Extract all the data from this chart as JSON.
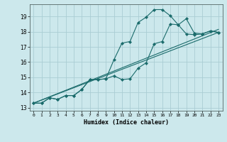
{
  "xlabel": "Humidex (Indice chaleur)",
  "bg_color": "#cce8ec",
  "grid_color": "#aacdd4",
  "line_color": "#1a6b6b",
  "xlim": [
    -0.5,
    23.5
  ],
  "ylim": [
    12.8,
    19.8
  ],
  "xticks": [
    0,
    1,
    2,
    3,
    4,
    5,
    6,
    7,
    8,
    9,
    10,
    11,
    12,
    13,
    14,
    15,
    16,
    17,
    18,
    19,
    20,
    21,
    22,
    23
  ],
  "yticks": [
    13,
    14,
    15,
    16,
    17,
    18,
    19
  ],
  "line1_x": [
    0,
    1,
    2,
    3,
    4,
    5,
    6,
    7,
    8,
    9,
    10,
    11,
    12,
    13,
    14,
    15,
    16,
    17,
    18,
    19,
    20,
    21,
    22,
    23
  ],
  "line1_y": [
    13.3,
    13.3,
    13.65,
    13.55,
    13.8,
    13.8,
    14.2,
    14.85,
    14.85,
    14.9,
    16.15,
    17.25,
    17.35,
    18.6,
    18.95,
    19.45,
    19.45,
    19.05,
    18.45,
    18.85,
    17.9,
    17.85,
    18.05,
    17.95
  ],
  "line2_x": [
    0,
    1,
    2,
    3,
    4,
    5,
    6,
    7,
    8,
    9,
    10,
    11,
    12,
    13,
    14,
    15,
    16,
    17,
    18,
    19,
    20,
    21,
    22,
    23
  ],
  "line2_y": [
    13.3,
    13.3,
    13.65,
    13.55,
    13.8,
    13.8,
    14.2,
    14.85,
    14.85,
    14.9,
    15.1,
    14.85,
    14.9,
    15.6,
    15.95,
    17.2,
    17.35,
    18.5,
    18.45,
    17.85,
    17.8,
    17.85,
    18.05,
    17.95
  ],
  "line3_x": [
    0,
    23
  ],
  "line3_y": [
    13.3,
    17.95
  ],
  "line4_x": [
    0,
    23
  ],
  "line4_y": [
    13.3,
    18.15
  ]
}
